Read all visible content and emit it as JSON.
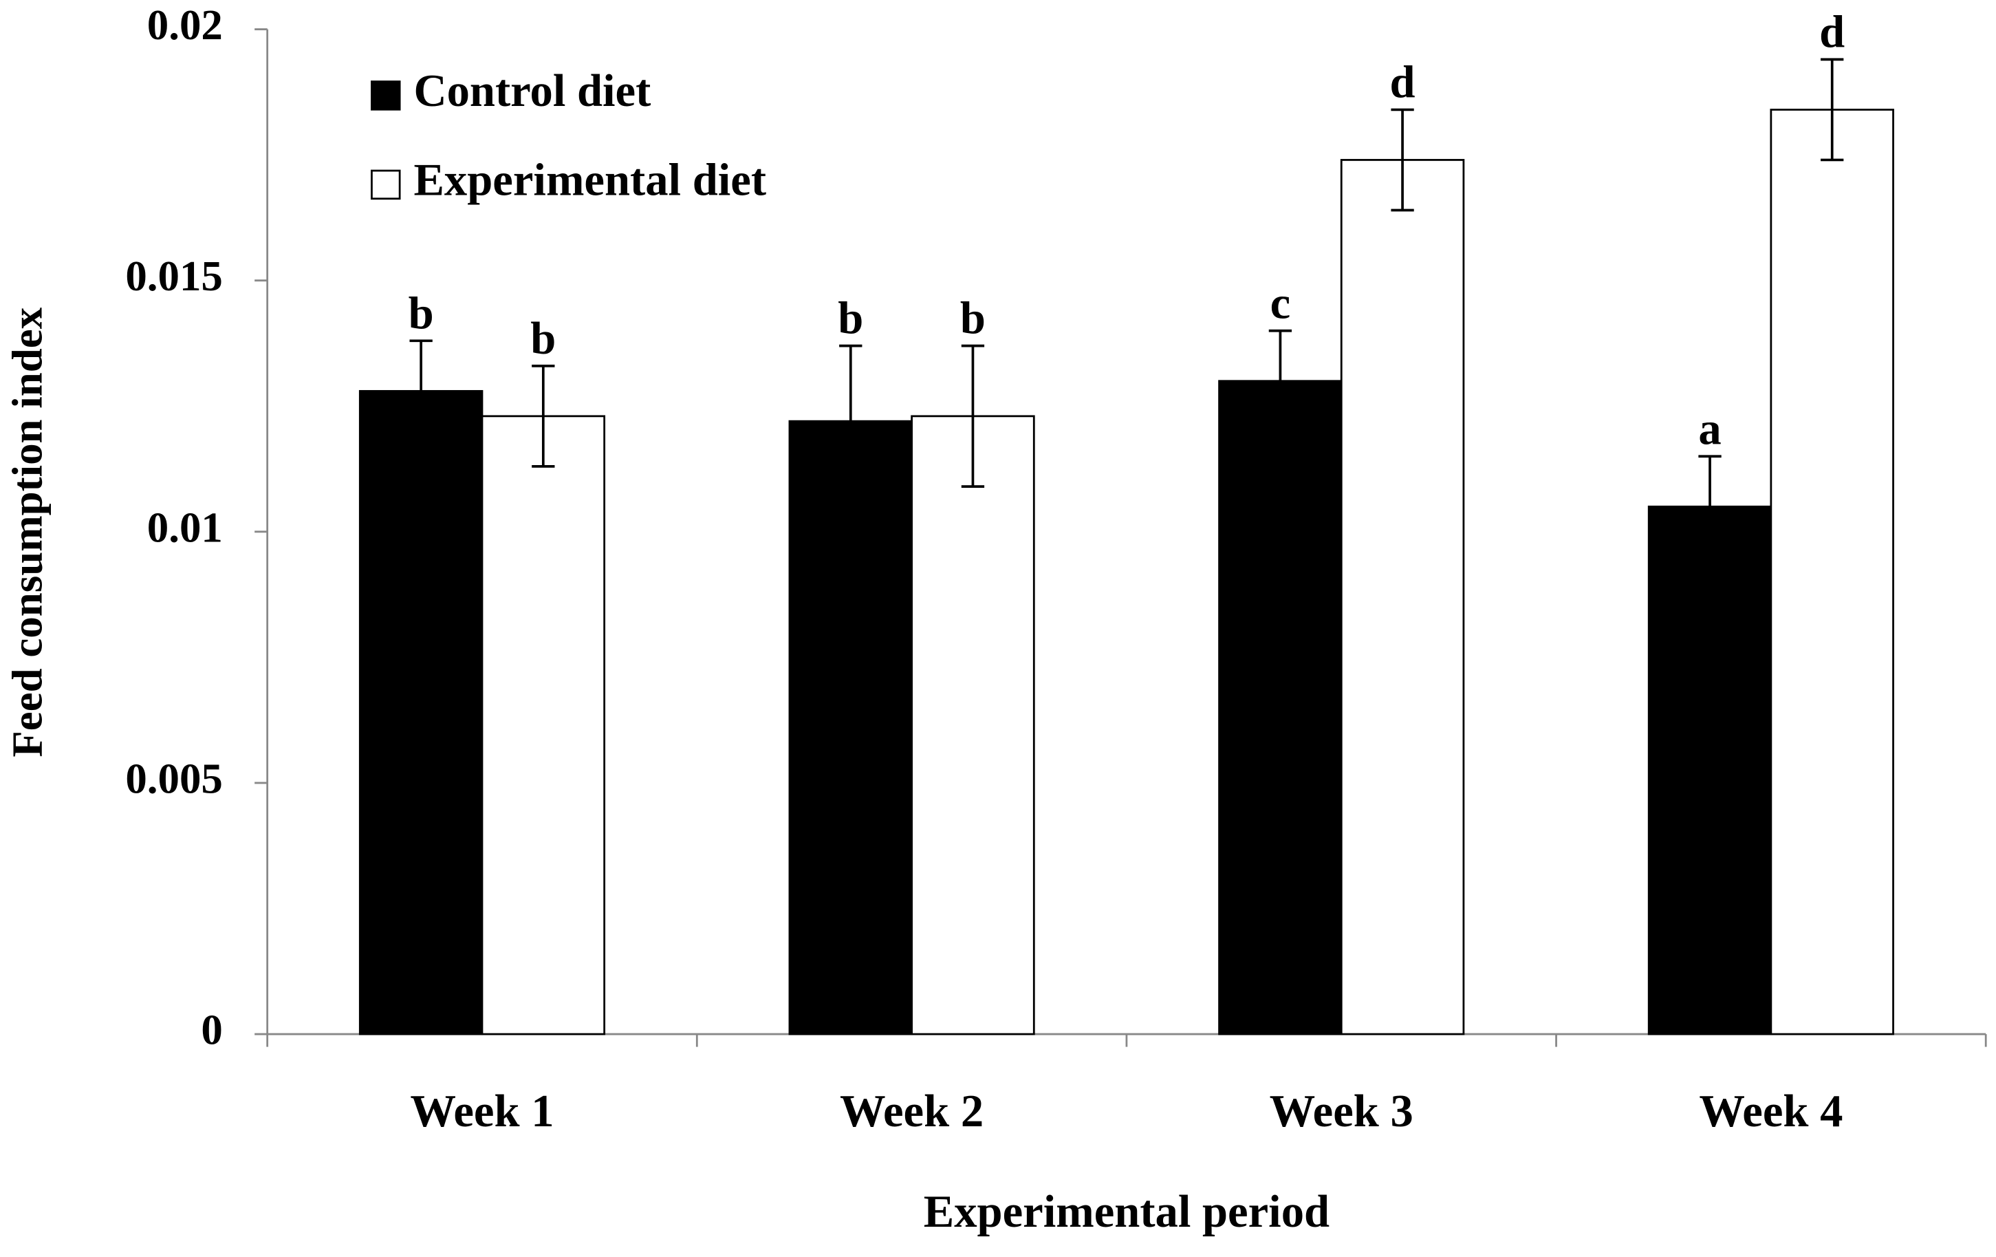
{
  "chart_data": {
    "type": "bar",
    "x_label": "Experimental period",
    "y_label": "Feed consumption index",
    "categories": [
      "Week 1",
      "Week 2",
      "Week 3",
      "Week 4"
    ],
    "series": [
      {
        "name": "Control diet",
        "color": "#000000",
        "values": [
          0.0128,
          0.0122,
          0.013,
          0.0105
        ],
        "errors": [
          0.001,
          0.0015,
          0.001,
          0.001
        ],
        "letters": [
          "b",
          "b",
          "c",
          "a"
        ]
      },
      {
        "name": "Experimental diet",
        "color": "#ffffff",
        "values": [
          0.0123,
          0.0123,
          0.0174,
          0.0184
        ],
        "errors": [
          0.001,
          0.0014,
          0.001,
          0.001
        ],
        "letters": [
          "b",
          "b",
          "d",
          "d"
        ]
      }
    ],
    "ylim": [
      0,
      0.02
    ],
    "yticks": [
      0,
      0.005,
      0.01,
      0.015,
      0.02
    ],
    "grid": false,
    "legend": "top-left"
  }
}
